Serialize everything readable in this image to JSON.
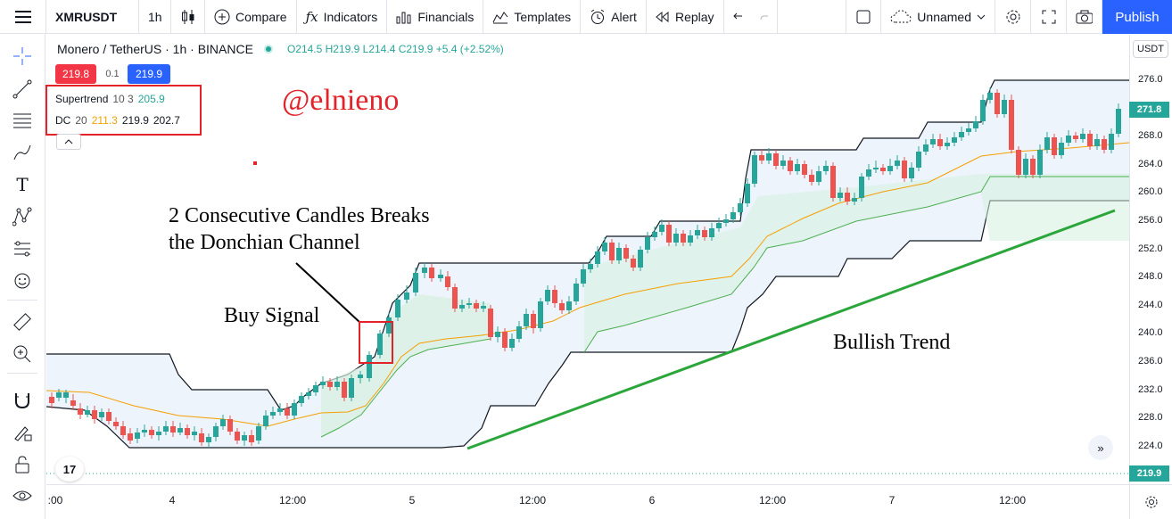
{
  "toolbar": {
    "symbol": "XMRUSDT",
    "interval": "1h",
    "compare": "Compare",
    "indicators": "Indicators",
    "financials": "Financials",
    "templates": "Templates",
    "alert": "Alert",
    "replay": "Replay",
    "layout_name": "Unnamed",
    "publish": "Publish"
  },
  "legend": {
    "title": "Monero / TetherUS · 1h · BINANCE",
    "ohlc": "O214.5  H219.9  L214.4  C219.9  +5.4 (+2.52%)",
    "sell_price": "219.8",
    "spread": "0.1",
    "buy_price": "219.9"
  },
  "indicators": [
    {
      "name": "Supertrend",
      "params": "10 3",
      "values": [
        {
          "v": "205.9",
          "color": "#26a69a"
        }
      ]
    },
    {
      "name": "DC",
      "params": "20",
      "values": [
        {
          "v": "211.3",
          "color": "#f59f00"
        },
        {
          "v": "219.9",
          "color": "#131722"
        },
        {
          "v": "202.7",
          "color": "#131722"
        }
      ]
    }
  ],
  "annotations": {
    "watermark": "@elnieno",
    "breakout_line1": "2 Consecutive Candles Breaks",
    "breakout_line2": "the Donchian Channel",
    "buy_signal": "Buy Signal",
    "trend": "Bullish Trend",
    "trend_color": "#2aa63b",
    "box_color": "#e2232a"
  },
  "price_axis": {
    "currency": "USDT",
    "labels": [
      "276.0",
      "272.0",
      "268.0",
      "264.0",
      "260.0",
      "256.0",
      "252.0",
      "248.0",
      "244.0",
      "240.0",
      "236.0",
      "232.0",
      "228.0",
      "224.0"
    ],
    "current_tag": "271.8",
    "last_tag": "219.9",
    "up_color": "#26a69a",
    "down_color": "#ef5350"
  },
  "time_axis": {
    "labels": [
      ":00",
      "4",
      "12:00",
      "5",
      "12:00",
      "6",
      "12:00",
      "7",
      "12:00"
    ]
  }
}
